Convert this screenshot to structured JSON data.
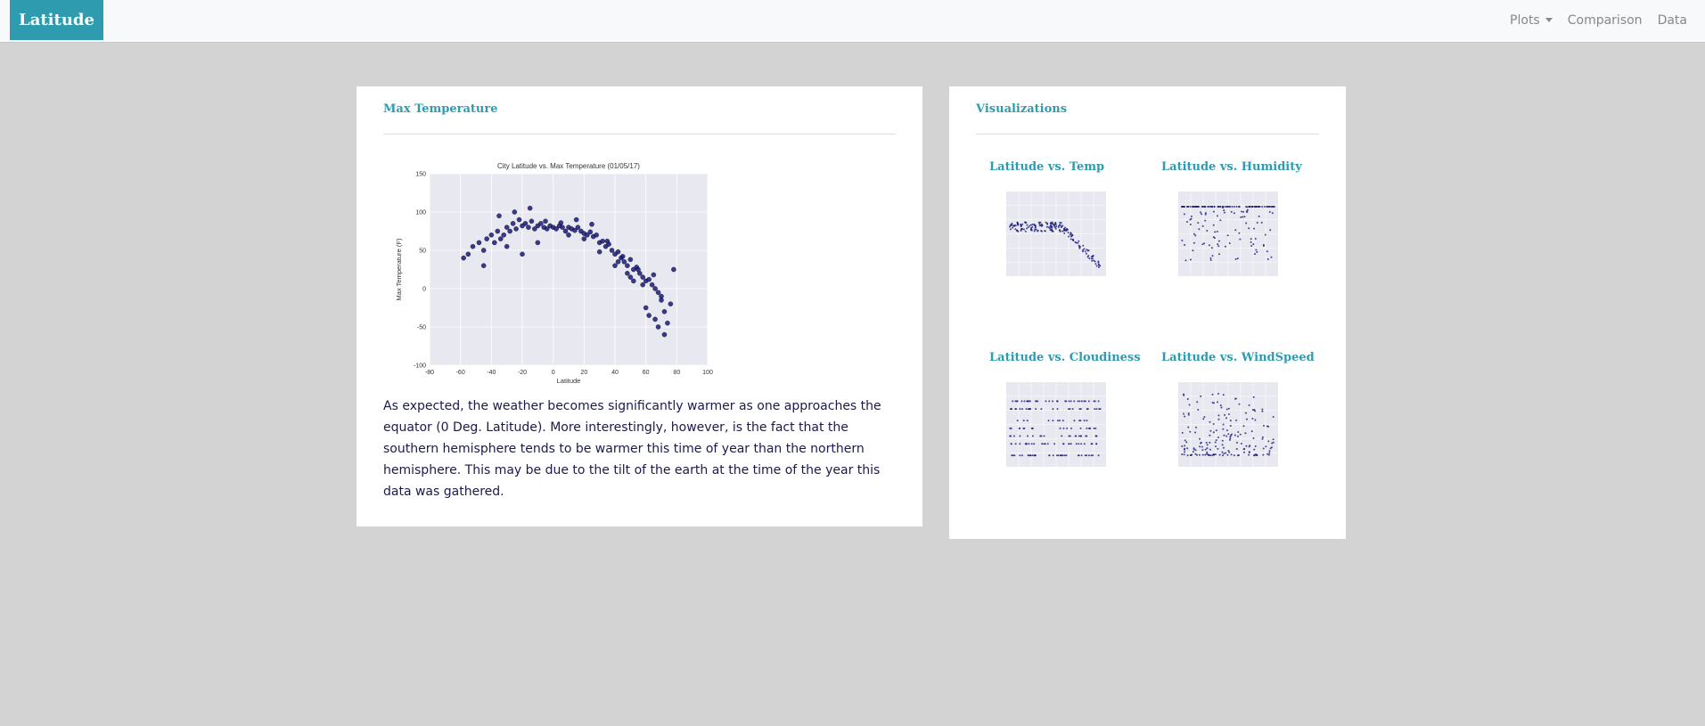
{
  "navbar": {
    "brand": "Latitude",
    "links": [
      {
        "label": "Plots",
        "has_dropdown": true
      },
      {
        "label": "Comparison"
      },
      {
        "label": "Data"
      }
    ]
  },
  "colors": {
    "accent": "#2e9cae",
    "background": "#d3d3d3",
    "point": "#1a1a7a",
    "plot_bg": "#e8e8f0"
  },
  "max_temp_panel": {
    "heading": "Max Temperature",
    "description": "As expected, the weather becomes significantly warmer as one approaches the equator (0 Deg. Latitude). More interestingly, however, is the fact that the southern hemisphere tends to be warmer this time of year than the northern hemisphere. This may be due to the tilt of the earth at the time of the year this data was gathered."
  },
  "visualizations_panel": {
    "heading": "Visualizations",
    "thumbnails": [
      {
        "title": "Latitude vs. Temp",
        "icon": "temp-scatter-thumbnail"
      },
      {
        "title": "Latitude vs. Humidity",
        "icon": "humidity-scatter-thumbnail"
      },
      {
        "title": "Latitude vs. Cloudiness",
        "icon": "cloudiness-scatter-thumbnail"
      },
      {
        "title": "Latitude vs. WindSpeed",
        "icon": "windspeed-scatter-thumbnail"
      }
    ]
  },
  "chart_data": {
    "type": "scatter",
    "title": "City Latitude vs. Max Temperature (01/05/17)",
    "xlabel": "Latitude",
    "ylabel": "Max Temperature (F)",
    "xlim": [
      -80,
      100
    ],
    "ylim": [
      -100,
      150
    ],
    "xticks": [
      -80,
      -60,
      -40,
      -20,
      0,
      20,
      40,
      60,
      80,
      100
    ],
    "yticks": [
      150,
      100,
      50,
      0,
      -50,
      -100
    ],
    "grid": true,
    "series": [
      {
        "x": [
          -58,
          -55,
          -52,
          -48,
          -45,
          -43,
          -40,
          -38,
          -36,
          -34,
          -32,
          -30,
          -28,
          -26,
          -24,
          -22,
          -20,
          -18,
          -16,
          -14,
          -12,
          -10,
          -8,
          -6,
          -4,
          -2,
          0,
          2,
          4,
          6,
          8,
          10,
          12,
          14,
          16,
          18,
          20,
          22,
          24,
          26,
          28,
          30,
          32,
          34,
          36,
          38,
          40,
          42,
          44,
          46,
          48,
          50,
          52,
          54,
          56,
          58,
          60,
          62,
          64,
          66,
          68,
          70,
          72,
          74,
          76,
          78,
          -35,
          -25,
          -15,
          -5,
          5,
          15,
          25,
          35,
          45,
          55,
          65,
          70,
          60,
          50,
          40,
          30,
          -45,
          -30,
          -20,
          -10,
          10,
          20,
          42,
          48,
          52,
          58,
          62,
          66,
          68,
          72
        ],
        "y": [
          40,
          45,
          55,
          60,
          50,
          65,
          70,
          60,
          75,
          65,
          70,
          80,
          75,
          85,
          78,
          90,
          82,
          85,
          80,
          88,
          78,
          82,
          85,
          80,
          78,
          82,
          80,
          78,
          82,
          80,
          75,
          80,
          78,
          76,
          80,
          75,
          72,
          70,
          74,
          68,
          70,
          60,
          62,
          55,
          58,
          50,
          45,
          48,
          40,
          35,
          30,
          38,
          25,
          28,
          20,
          15,
          10,
          12,
          5,
          0,
          -5,
          -15,
          -30,
          -45,
          -20,
          25,
          95,
          100,
          105,
          88,
          86,
          90,
          84,
          62,
          42,
          25,
          18,
          -10,
          -25,
          15,
          30,
          48,
          30,
          55,
          45,
          60,
          70,
          65,
          35,
          20,
          10,
          5,
          -35,
          -40,
          -50,
          -60
        ]
      }
    ]
  }
}
